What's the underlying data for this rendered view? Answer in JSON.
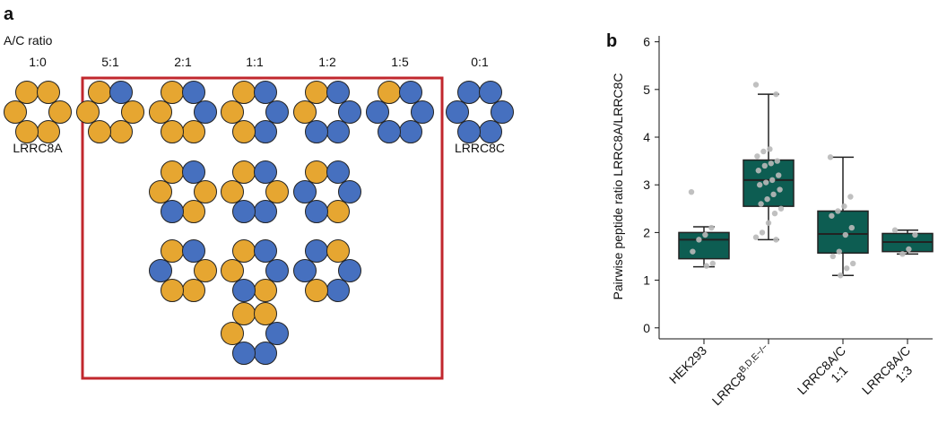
{
  "panel_a": {
    "label": "a",
    "ratio_title": "A/C ratio",
    "ratios": [
      "1:0",
      "5:1",
      "2:1",
      "1:1",
      "1:2",
      "1:5",
      "0:1"
    ],
    "left_name": "LRRC8A",
    "right_name": "LRRC8C"
  },
  "chart_data": {
    "type": "box",
    "panel_label": "b",
    "ylabel": "Pairwise peptide ratio LRRC8A/LRRC8C",
    "categories": [
      [
        "HEK293"
      ],
      [
        "LRRC8"
      ],
      [
        "LRRC8A/C",
        "1:1"
      ],
      [
        "LRRC8A/C",
        "1:3"
      ]
    ],
    "category_superscripts": [
      null,
      "B,D,E−/−",
      null,
      null
    ],
    "color": "#0d5d52",
    "boxes": [
      {
        "min": 1.28,
        "q1": 1.45,
        "median": 1.85,
        "q3": 2.0,
        "max": 2.12,
        "points": [
          2.85,
          2.1,
          1.95,
          1.85,
          1.6,
          1.35,
          1.3
        ]
      },
      {
        "min": 1.85,
        "q1": 2.55,
        "median": 3.1,
        "q3": 3.52,
        "max": 4.9,
        "points": [
          5.1,
          4.9,
          3.75,
          3.7,
          3.6,
          3.5,
          3.45,
          3.4,
          3.3,
          3.2,
          3.1,
          3.05,
          3.0,
          2.9,
          2.8,
          2.7,
          2.6,
          2.5,
          2.4,
          2.2,
          2.0,
          1.9,
          1.85
        ]
      },
      {
        "min": 1.1,
        "q1": 1.57,
        "median": 1.97,
        "q3": 2.45,
        "max": 3.58,
        "points": [
          3.58,
          2.75,
          2.55,
          2.45,
          2.35,
          2.1,
          1.95,
          1.6,
          1.5,
          1.35,
          1.25,
          1.1
        ]
      },
      {
        "min": 1.55,
        "q1": 1.6,
        "median": 1.8,
        "q3": 1.98,
        "max": 2.05,
        "points": [
          2.05,
          1.95,
          1.65,
          1.55
        ]
      }
    ],
    "ylim": [
      -0.23,
      6.2
    ],
    "yticks": [
      0,
      1,
      2,
      3,
      4,
      5,
      6
    ]
  }
}
